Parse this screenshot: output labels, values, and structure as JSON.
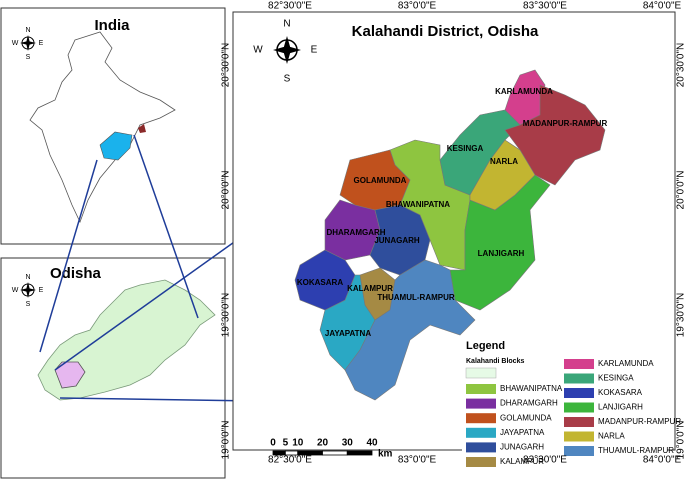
{
  "map": {
    "title": "Kalahandi District, Odisha",
    "lon_labels": [
      "82°30'0\"E",
      "83°0'0\"E",
      "83°30'0\"E",
      "84°0'0\"E"
    ],
    "lat_labels": [
      "20°30'0\"N",
      "20°0'0\"N",
      "19°30'0\"N",
      "19°0'0\"N"
    ],
    "compass": {
      "n": "N",
      "s": "S",
      "e": "E",
      "w": "W"
    },
    "inset_india": {
      "title": "India"
    },
    "inset_odisha": {
      "title": "Odisha"
    },
    "legend": {
      "title": "Legend",
      "subtitle": "Kalahandi Blocks",
      "items": [
        {
          "name": "BHAWANIPATNA",
          "color": "#8ec540"
        },
        {
          "name": "DHARAMGARH",
          "color": "#7a2fa0"
        },
        {
          "name": "GOLAMUNDA",
          "color": "#c0511d"
        },
        {
          "name": "JAYAPATNA",
          "color": "#2aa8c4"
        },
        {
          "name": "JUNAGARH",
          "color": "#2f4e9c"
        },
        {
          "name": "KALAMPUR",
          "color": "#a58a44"
        },
        {
          "name": "KARLAMUNDA",
          "color": "#d43f8d"
        },
        {
          "name": "KESINGA",
          "color": "#3aa679"
        },
        {
          "name": "KOKASARA",
          "color": "#2d3fb0"
        },
        {
          "name": "LANJIGARH",
          "color": "#3cb53c"
        },
        {
          "name": "MADANPUR-RAMPUR",
          "color": "#a83c48"
        },
        {
          "name": "NARLA",
          "color": "#c2b531"
        },
        {
          "name": "THUAMUL-RAMPUR",
          "color": "#4f86c0"
        }
      ]
    },
    "scale": {
      "ticks": [
        0,
        5,
        10,
        20,
        30,
        40
      ],
      "unit": "km"
    }
  }
}
